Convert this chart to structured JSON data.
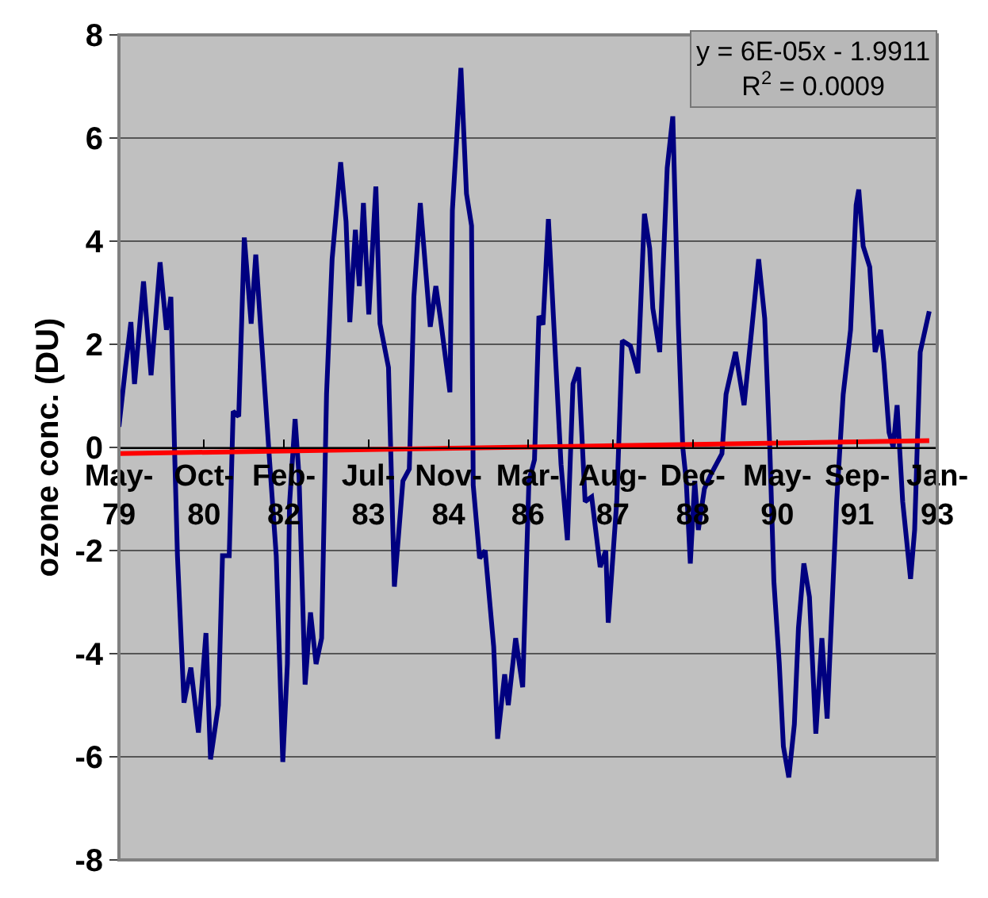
{
  "chart_data": {
    "type": "line",
    "ylabel": "ozone conc. (DU)",
    "x": [
      "1979-05-01",
      "1979-06-10",
      "1979-07-13",
      "1979-08-04",
      "1979-09-28",
      "1979-11-13",
      "1980-01-07",
      "1980-02-15",
      "1980-03-13",
      "1980-04-04",
      "1980-04-22",
      "1980-06-01",
      "1980-07-13",
      "1980-08-28",
      "1980-10-13",
      "1980-11-10",
      "1980-12-28",
      "1981-01-22",
      "1981-03-04",
      "1981-03-28",
      "1981-05-01",
      "1981-06-04",
      "1981-07-16",
      "1981-08-13",
      "1981-09-22",
      "1981-11-04",
      "1981-12-16",
      "1982-01-25",
      "1982-02-22",
      "1982-03-07",
      "1982-04-10",
      "1982-05-04",
      "1982-06-10",
      "1982-07-13",
      "1982-08-16",
      "1982-09-19",
      "1982-10-19",
      "1982-11-22",
      "1983-01-13",
      "1983-02-15",
      "1983-03-10",
      "1983-04-13",
      "1983-05-07",
      "1983-06-01",
      "1983-07-04",
      "1983-08-16",
      "1983-09-10",
      "1983-11-01",
      "1983-12-07",
      "1984-01-28",
      "1984-03-07",
      "1984-04-04",
      "1984-05-13",
      "1984-07-13",
      "1984-08-16",
      "1984-09-13",
      "1984-11-10",
      "1984-11-25",
      "1985-01-16",
      "1985-02-19",
      "1985-03-22",
      "1985-04-01",
      "1985-05-10",
      "1985-06-13",
      "1985-08-04",
      "1985-08-28",
      "1985-10-10",
      "1985-11-01",
      "1985-12-16",
      "1986-01-28",
      "1986-03-07",
      "1986-04-10",
      "1986-05-07",
      "1986-06-01",
      "1986-07-04",
      "1986-08-16",
      "1986-09-19",
      "1986-10-28",
      "1986-12-01",
      "1987-01-04",
      "1987-02-13",
      "1987-03-25",
      "1987-05-16",
      "1987-06-19",
      "1987-07-04",
      "1987-08-25",
      "1987-09-28",
      "1987-11-16",
      "1988-01-01",
      "1988-02-10",
      "1988-03-13",
      "1988-04-01",
      "1988-05-13",
      "1988-06-28",
      "1988-08-01",
      "1988-09-04",
      "1988-10-01",
      "1988-10-22",
      "1988-11-16",
      "1988-12-13",
      "1989-01-04",
      "1989-02-10",
      "1989-03-22",
      "1989-05-28",
      "1989-06-22",
      "1989-08-19",
      "1989-10-10",
      "1989-11-19",
      "1990-01-07",
      "1990-02-13",
      "1990-03-16",
      "1990-04-10",
      "1990-05-13",
      "1990-06-07",
      "1990-07-10",
      "1990-08-13",
      "1990-09-07",
      "1990-10-10",
      "1990-11-13",
      "1990-12-22",
      "1991-01-28",
      "1991-03-01",
      "1991-03-25",
      "1991-04-28",
      "1991-06-07",
      "1991-07-22",
      "1991-08-25",
      "1991-09-10",
      "1991-10-07",
      "1991-11-16",
      "1991-12-19",
      "1992-01-22",
      "1992-02-10",
      "1992-03-13",
      "1992-04-07",
      "1992-05-01",
      "1992-06-04",
      "1992-07-22",
      "1992-08-16",
      "1992-09-19",
      "1992-11-13"
    ],
    "series": [
      {
        "color": "#000080",
        "values": [
          0.4,
          1.55,
          2.43,
          1.23,
          3.22,
          1.4,
          3.59,
          2.28,
          2.92,
          0,
          -2.1,
          -4.95,
          -4.27,
          -5.53,
          -3.6,
          -6.05,
          -5.0,
          -2.1,
          -2.1,
          0.7,
          0.6,
          4.07,
          2.4,
          3.74,
          1.85,
          -0.2,
          -2.1,
          -6.1,
          -4.2,
          -1.1,
          0.55,
          -0.55,
          -4.6,
          -3.2,
          -4.2,
          -3.7,
          1.03,
          3.65,
          5.53,
          4.38,
          2.43,
          4.22,
          3.13,
          4.74,
          2.58,
          5.06,
          2.4,
          1.55,
          -2.7,
          -0.65,
          -0.42,
          2.92,
          4.74,
          2.34,
          3.13,
          2.5,
          1.07,
          4.6,
          7.36,
          4.92,
          4.3,
          -0.73,
          -2.15,
          -2.0,
          -3.86,
          -5.65,
          -4.4,
          -5.0,
          -3.7,
          -4.65,
          -0.65,
          -0.24,
          2.55,
          2.38,
          4.43,
          1.76,
          -0.33,
          -1.8,
          1.23,
          1.55,
          -1.05,
          -0.96,
          -2.32,
          -2.0,
          -3.4,
          -1.05,
          2.07,
          1.97,
          1.44,
          4.53,
          3.86,
          2.7,
          1.85,
          5.42,
          6.42,
          2.38,
          0,
          -0.65,
          -2.25,
          -0.65,
          -1.6,
          -0.8,
          -0.52,
          -0.12,
          1.03,
          1.85,
          0.82,
          2.07,
          3.65,
          2.5,
          0,
          -2.6,
          -4.2,
          -5.8,
          -6.4,
          -5.37,
          -3.5,
          -2.25,
          -2.9,
          -5.55,
          -3.7,
          -5.26,
          -3.5,
          -1.05,
          1.03,
          2.28,
          4.7,
          5.0,
          3.9,
          3.5,
          1.85,
          2.28,
          1.65,
          0.29,
          0,
          0.82,
          -1.05,
          -2.55,
          -1.6,
          1.85,
          2.64
        ]
      },
      {
        "type": "line",
        "color": "#ff0000",
        "x": [
          "1979-05-01",
          "1992-11-13"
        ],
        "values": [
          -0.12,
          0.13
        ]
      }
    ],
    "xlim": [
      "1979-05-01",
      "1993-01-01"
    ],
    "xticks": [
      {
        "value": "1979-05-01",
        "label": "May-79"
      },
      {
        "value": "1980-10-01",
        "label": "Oct-80"
      },
      {
        "value": "1982-02-01",
        "label": "Feb-82"
      },
      {
        "value": "1983-07-01",
        "label": "Jul-83"
      },
      {
        "value": "1984-11-01",
        "label": "Nov-84"
      },
      {
        "value": "1986-03-01",
        "label": "Mar-86"
      },
      {
        "value": "1987-08-01",
        "label": "Aug-87"
      },
      {
        "value": "1988-12-01",
        "label": "Dec-88"
      },
      {
        "value": "1990-05-01",
        "label": "May-90"
      },
      {
        "value": "1991-09-01",
        "label": "Sep-91"
      },
      {
        "value": "1993-01-01",
        "label": "Jan-93"
      }
    ],
    "ylim": [
      -8,
      8
    ],
    "yticks": [
      -8,
      -6,
      -4,
      -2,
      0,
      2,
      4,
      6,
      8
    ],
    "grid": "y",
    "marker": "none",
    "line_style": "solid",
    "annotations": [
      "y = 6E-05x - 1.9911",
      "R$^{2}$ = 0.0009"
    ]
  }
}
